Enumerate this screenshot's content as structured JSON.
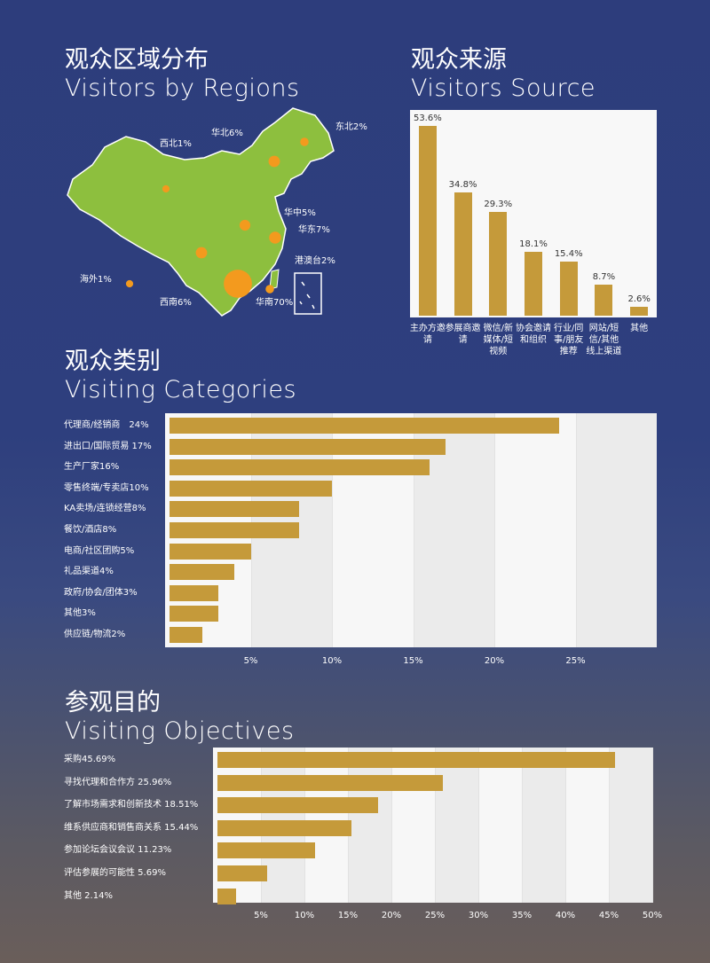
{
  "chart_data": [
    {
      "type": "map",
      "title": "观众区域分布",
      "subtitle": "Visitors by Regions",
      "values": [
        2,
        1,
        6,
        5,
        7,
        2,
        1,
        6,
        70
      ],
      "value_labels": [
        "东北2%",
        "西北1%",
        "华北6%",
        "华中5%",
        "华东7%",
        "港澳台2%",
        "海外1%",
        "西南6%",
        "华南70%"
      ],
      "color": "#f39a1e",
      "land_color": "#8dbf3e"
    },
    {
      "type": "bar",
      "title": "观众来源",
      "subtitle": "Visitors Source",
      "categories": [
        "主办方邀请",
        "参展商邀请",
        "微信/新媒体/短视频",
        "协会邀请和组织",
        "行业/同事/朋友推荐",
        "网站/短信/其他线上渠道",
        "其他"
      ],
      "values": [
        53.6,
        34.8,
        29.3,
        18.1,
        15.4,
        8.7,
        2.6
      ],
      "value_labels": [
        "53.6%",
        "34.8%",
        "29.3%",
        "18.1%",
        "15.4%",
        "8.7%",
        "2.6%"
      ],
      "color": "#c59a3a"
    },
    {
      "type": "barh",
      "title": "观众类别",
      "subtitle": "Visiting Categories",
      "values": [
        24,
        17,
        16,
        10,
        8,
        8,
        5,
        4,
        3,
        3,
        2
      ],
      "value_labels": [
        "代理商/经销商　24%",
        "进出口/国际贸易 17%",
        "生产厂家16%",
        "零售终端/专卖店10%",
        "KA卖场/连锁经营8%",
        "餐饮/酒店8%",
        "电商/社区团购5%",
        "礼品渠道4%",
        "政府/协会/团体3%",
        "其他3%",
        "供应链/物流2%"
      ],
      "xlim": [
        0,
        30
      ],
      "xticks": [
        {
          "value": 5,
          "label": "5%"
        },
        {
          "value": 10,
          "label": "10%"
        },
        {
          "value": 15,
          "label": "15%"
        },
        {
          "value": 20,
          "label": "20%"
        },
        {
          "value": 25,
          "label": "25%"
        }
      ],
      "color": "#c59a3a",
      "grid": true
    },
    {
      "type": "barh",
      "title": "参观目的",
      "subtitle": "Visiting Objectives",
      "values": [
        45.69,
        25.96,
        18.51,
        15.44,
        11.23,
        5.69,
        2.14
      ],
      "value_labels": [
        "采购45.69%",
        "寻找代理和合作方 25.96%",
        "了解市场需求和创新技术 18.51%",
        "维系供应商和销售商关系 15.44%",
        "参加论坛会议会议 11.23%",
        "评估参展的可能性 5.69%",
        "其他 2.14%"
      ],
      "xlim": [
        0,
        50
      ],
      "xticks": [
        {
          "value": 5,
          "label": "5%"
        },
        {
          "value": 10,
          "label": "10%"
        },
        {
          "value": 15,
          "label": "15%"
        },
        {
          "value": 20,
          "label": "20%"
        },
        {
          "value": 25,
          "label": "25%"
        },
        {
          "value": 30,
          "label": "30%"
        },
        {
          "value": 35,
          "label": "35%"
        },
        {
          "value": 40,
          "label": "40%"
        },
        {
          "value": 45,
          "label": "45%"
        },
        {
          "value": 50,
          "label": "50%"
        }
      ],
      "color": "#c59a3a",
      "grid": true
    }
  ]
}
